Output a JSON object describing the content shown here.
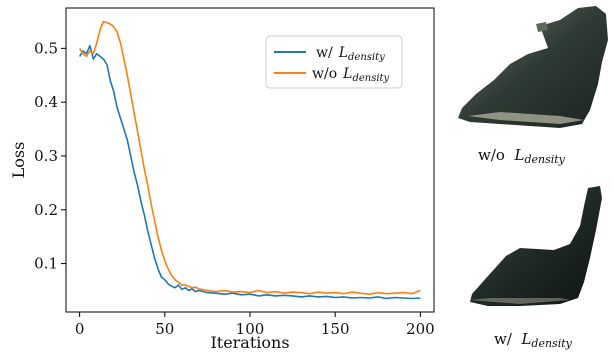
{
  "chart_data": {
    "type": "line",
    "xlabel": "Iterations",
    "ylabel": "Loss",
    "xlim": [
      -8,
      208
    ],
    "ylim": [
      0.01,
      0.575
    ],
    "xticks": [
      "0",
      "50",
      "100",
      "150",
      "200"
    ],
    "yticks": [
      "0.1",
      "0.2",
      "0.3",
      "0.4",
      "0.5"
    ],
    "xtick_values": [
      0,
      50,
      100,
      150,
      200
    ],
    "ytick_values": [
      0.1,
      0.2,
      0.3,
      0.4,
      0.5
    ],
    "grid": false,
    "legend_position": "top-right",
    "series": [
      {
        "name": "w/ L_density",
        "label_main": "w/",
        "label_math": "L",
        "label_sub": "density",
        "color": "#1f77b4",
        "x": [
          0,
          2,
          4,
          6,
          8,
          10,
          12,
          14,
          16,
          18,
          20,
          22,
          24,
          26,
          28,
          30,
          32,
          34,
          36,
          38,
          40,
          42,
          44,
          46,
          48,
          50,
          52,
          54,
          56,
          58,
          60,
          62,
          64,
          66,
          68,
          70,
          75,
          80,
          85,
          90,
          95,
          100,
          105,
          110,
          115,
          120,
          125,
          130,
          135,
          140,
          145,
          150,
          155,
          160,
          165,
          170,
          175,
          180,
          185,
          190,
          195,
          200
        ],
        "y": [
          0.485,
          0.495,
          0.49,
          0.505,
          0.48,
          0.49,
          0.485,
          0.48,
          0.47,
          0.44,
          0.42,
          0.39,
          0.37,
          0.35,
          0.33,
          0.3,
          0.27,
          0.245,
          0.215,
          0.19,
          0.16,
          0.135,
          0.11,
          0.09,
          0.075,
          0.07,
          0.062,
          0.058,
          0.055,
          0.06,
          0.052,
          0.055,
          0.05,
          0.053,
          0.048,
          0.05,
          0.046,
          0.045,
          0.043,
          0.045,
          0.042,
          0.043,
          0.04,
          0.042,
          0.04,
          0.041,
          0.04,
          0.038,
          0.04,
          0.038,
          0.039,
          0.037,
          0.038,
          0.036,
          0.037,
          0.036,
          0.038,
          0.035,
          0.037,
          0.036,
          0.035,
          0.036
        ]
      },
      {
        "name": "w/o L_density",
        "label_main": "w/o",
        "label_math": "L",
        "label_sub": "density",
        "color": "#ff7f0e",
        "x": [
          0,
          2,
          4,
          6,
          8,
          10,
          12,
          14,
          16,
          18,
          20,
          22,
          24,
          26,
          28,
          30,
          32,
          34,
          36,
          38,
          40,
          42,
          44,
          46,
          48,
          50,
          52,
          54,
          56,
          58,
          60,
          62,
          64,
          66,
          68,
          70,
          75,
          80,
          85,
          90,
          95,
          100,
          105,
          110,
          115,
          120,
          125,
          130,
          135,
          140,
          145,
          150,
          155,
          160,
          165,
          170,
          175,
          180,
          185,
          190,
          195,
          200
        ],
        "y": [
          0.5,
          0.49,
          0.485,
          0.495,
          0.49,
          0.51,
          0.535,
          0.55,
          0.548,
          0.545,
          0.54,
          0.53,
          0.51,
          0.48,
          0.45,
          0.415,
          0.38,
          0.345,
          0.31,
          0.275,
          0.245,
          0.21,
          0.18,
          0.15,
          0.125,
          0.105,
          0.09,
          0.078,
          0.07,
          0.065,
          0.06,
          0.06,
          0.058,
          0.055,
          0.056,
          0.053,
          0.05,
          0.048,
          0.05,
          0.047,
          0.048,
          0.046,
          0.05,
          0.046,
          0.048,
          0.045,
          0.047,
          0.046,
          0.044,
          0.047,
          0.045,
          0.046,
          0.044,
          0.047,
          0.045,
          0.043,
          0.046,
          0.044,
          0.045,
          0.046,
          0.044,
          0.05
        ]
      }
    ]
  },
  "captions": {
    "top": {
      "prefix": "w/o",
      "math": "L",
      "sub": "density"
    },
    "bottom": {
      "prefix": "w/",
      "math": "L",
      "sub": "density"
    }
  },
  "images": {
    "top_name": "reconstruction-without-density",
    "bottom_name": "reconstruction-with-density"
  }
}
